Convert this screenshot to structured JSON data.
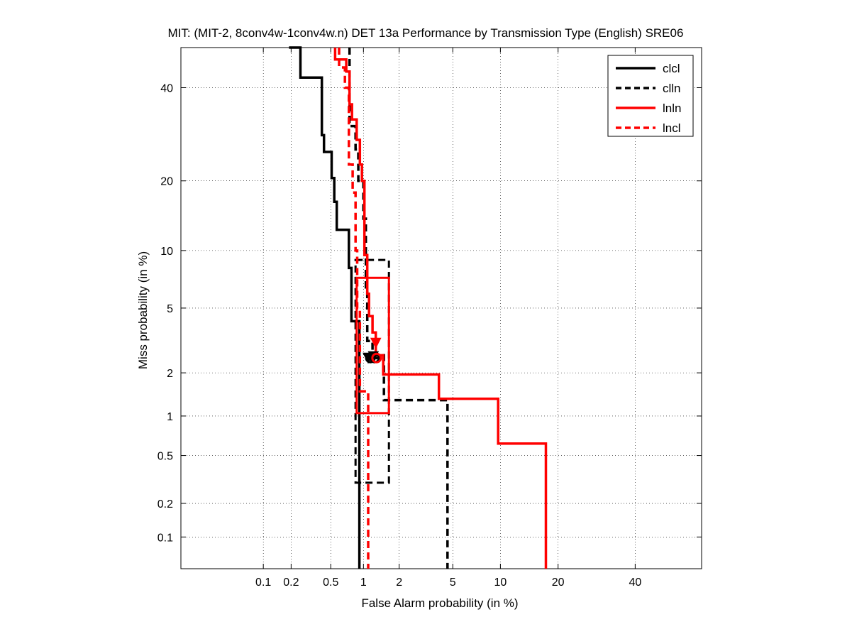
{
  "chart_data": {
    "type": "line",
    "title": "MIT: (MIT-2, 8conv4w-1conv4w.n) DET 13a Performance by Transmission Type (English) SRE06",
    "xlabel": "False Alarm probability (in %)",
    "ylabel": "Miss probability (in %)",
    "x_scale": "normal-deviate",
    "y_scale": "normal-deviate",
    "xlim": [
      0.01,
      60
    ],
    "ylim": [
      0.05,
      50
    ],
    "grid": "dotted",
    "x_ticks": [
      {
        "value": 0.1,
        "label": "0.1"
      },
      {
        "value": 0.2,
        "label": "0.2"
      },
      {
        "value": 0.5,
        "label": "0.5"
      },
      {
        "value": 1,
        "label": "1"
      },
      {
        "value": 2,
        "label": "2"
      },
      {
        "value": 5,
        "label": "5"
      },
      {
        "value": 10,
        "label": "10"
      },
      {
        "value": 20,
        "label": "20"
      },
      {
        "value": 40,
        "label": "40"
      }
    ],
    "y_ticks": [
      {
        "value": 0.1,
        "label": "0.1"
      },
      {
        "value": 0.2,
        "label": "0.2"
      },
      {
        "value": 0.5,
        "label": "0.5"
      },
      {
        "value": 1,
        "label": "1"
      },
      {
        "value": 2,
        "label": "2"
      },
      {
        "value": 5,
        "label": "5"
      },
      {
        "value": 10,
        "label": "10"
      },
      {
        "value": 20,
        "label": "20"
      },
      {
        "value": 40,
        "label": "40"
      }
    ],
    "legend": {
      "position": "top-right"
    },
    "series": [
      {
        "name": "clcl",
        "color": "#000000",
        "dash": "solid",
        "points": [
          [
            0.19,
            50
          ],
          [
            0.25,
            50
          ],
          [
            0.25,
            42.5
          ],
          [
            0.41,
            42.5
          ],
          [
            0.41,
            29
          ],
          [
            0.43,
            29
          ],
          [
            0.43,
            25.5
          ],
          [
            0.51,
            25.5
          ],
          [
            0.51,
            20.5
          ],
          [
            0.54,
            20.5
          ],
          [
            0.54,
            16.5
          ],
          [
            0.57,
            16.5
          ],
          [
            0.57,
            12.5
          ],
          [
            0.74,
            12.5
          ],
          [
            0.74,
            8.2
          ],
          [
            0.78,
            8.2
          ],
          [
            0.78,
            4.2
          ],
          [
            0.92,
            4.2
          ],
          [
            0.92,
            0.05
          ]
        ],
        "act_dcf": [
          1.1,
          2.5
        ],
        "min_dcf": [
          1.15,
          2.5
        ]
      },
      {
        "name": "clln",
        "color": "#000000",
        "dash": "dashed",
        "points": [
          [
            0.75,
            50
          ],
          [
            0.75,
            31
          ],
          [
            0.85,
            31
          ],
          [
            0.85,
            26
          ],
          [
            0.9,
            26
          ],
          [
            0.9,
            20
          ],
          [
            1.0,
            20
          ],
          [
            1.0,
            14
          ],
          [
            1.05,
            14
          ],
          [
            1.05,
            6.5
          ],
          [
            1.08,
            6.5
          ],
          [
            1.08,
            3.2
          ],
          [
            1.2,
            3.2
          ],
          [
            1.2,
            2.6
          ],
          [
            1.5,
            2.6
          ],
          [
            1.5,
            1.3
          ],
          [
            4.6,
            1.3
          ],
          [
            4.6,
            0.05
          ]
        ],
        "conf_box": [
          [
            0.85,
            0.3
          ],
          [
            1.65,
            9
          ]
        ],
        "act_dcf": [
          1.22,
          2.55
        ],
        "min_dcf": [
          1.25,
          2.5
        ]
      },
      {
        "name": "lnln",
        "color": "#ff0000",
        "dash": "solid",
        "points": [
          [
            0.55,
            50
          ],
          [
            0.55,
            47
          ],
          [
            0.7,
            47
          ],
          [
            0.7,
            44
          ],
          [
            0.75,
            44
          ],
          [
            0.75,
            36
          ],
          [
            0.79,
            36
          ],
          [
            0.79,
            32.5
          ],
          [
            0.87,
            32.5
          ],
          [
            0.87,
            28
          ],
          [
            0.93,
            28
          ],
          [
            0.93,
            23
          ],
          [
            0.97,
            23
          ],
          [
            0.97,
            20
          ],
          [
            1.02,
            20
          ],
          [
            1.02,
            9.5
          ],
          [
            1.08,
            9.5
          ],
          [
            1.08,
            6
          ],
          [
            1.12,
            6
          ],
          [
            1.12,
            4.5
          ],
          [
            1.2,
            4.5
          ],
          [
            1.2,
            3.6
          ],
          [
            1.28,
            3.6
          ],
          [
            1.28,
            2.6
          ],
          [
            1.48,
            2.6
          ],
          [
            1.48,
            1.95
          ],
          [
            4.0,
            1.95
          ],
          [
            4.0,
            1.33
          ],
          [
            9.7,
            1.33
          ],
          [
            9.7,
            0.62
          ],
          [
            17.5,
            0.62
          ],
          [
            17.5,
            0.05
          ]
        ],
        "conf_box": [
          [
            0.87,
            1.05
          ],
          [
            1.65,
            7.3
          ]
        ],
        "act_dcf": [
          1.28,
          3.1
        ],
        "min_dcf": [
          1.3,
          2.5
        ]
      },
      {
        "name": "lncl",
        "color": "#ff0000",
        "dash": "dashed",
        "points": [
          [
            0.6,
            50
          ],
          [
            0.6,
            45
          ],
          [
            0.68,
            45
          ],
          [
            0.68,
            40
          ],
          [
            0.74,
            40
          ],
          [
            0.74,
            23
          ],
          [
            0.8,
            23
          ],
          [
            0.8,
            18
          ],
          [
            0.85,
            18
          ],
          [
            0.85,
            10
          ],
          [
            0.88,
            10
          ],
          [
            0.88,
            5
          ],
          [
            0.93,
            5
          ],
          [
            0.93,
            1.5
          ],
          [
            1.1,
            1.5
          ],
          [
            1.1,
            0.05
          ]
        ]
      }
    ]
  }
}
